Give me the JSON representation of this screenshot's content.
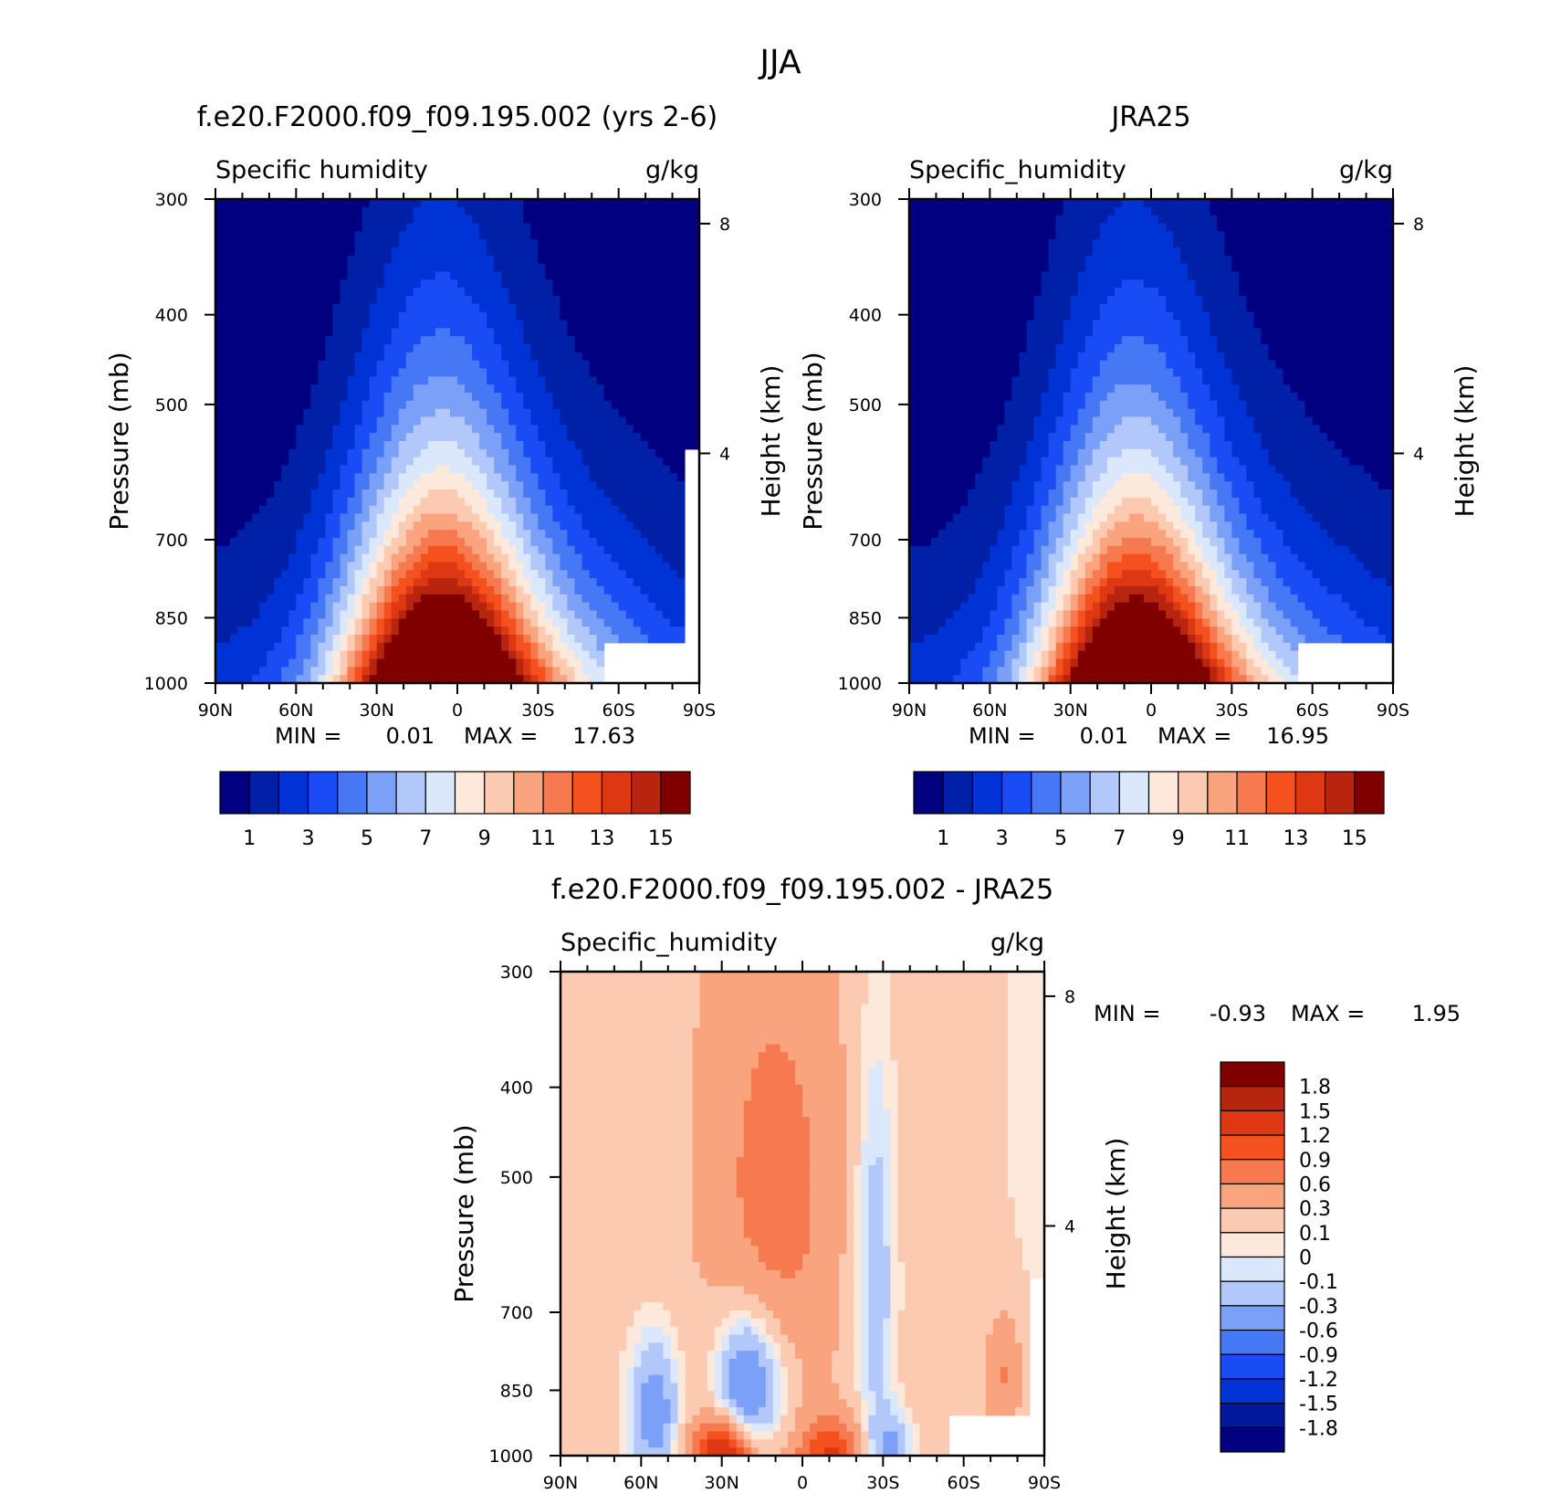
{
  "title": "JJA",
  "colors": {
    "abs_levels": [
      "#000080",
      "#0020a8",
      "#0033d6",
      "#1a4cf5",
      "#4677f5",
      "#7ba0f7",
      "#b3c8fa",
      "#dbe8fb",
      "#fde9dc",
      "#fbcab0",
      "#f9a47f",
      "#f7794f",
      "#f4511e",
      "#dd3814",
      "#b8250e",
      "#800000"
    ],
    "diff_levels": [
      "#000080",
      "#00199e",
      "#0033d6",
      "#1a4cf5",
      "#4677f5",
      "#7ba0f7",
      "#b3c8fa",
      "#dbe8fb",
      "#fde9dc",
      "#fbcab0",
      "#f9a47f",
      "#f7794f",
      "#f4511e",
      "#dd3814",
      "#b8250e",
      "#800000"
    ]
  },
  "chart_data": [
    {
      "type": "heatmap",
      "title": "f.e20.F2000.f09_f09.195.002 (yrs 2-6)",
      "left_label": "Specific humidity",
      "units": "g/kg",
      "xlabel": "",
      "ylabel": "Pressure (mb)",
      "y2label": "Height (km)",
      "xticks": [
        "90N",
        "60N",
        "30N",
        "0",
        "30S",
        "60S",
        "90S"
      ],
      "yticks": [
        300,
        400,
        500,
        700,
        850,
        1000
      ],
      "y2ticks": [
        8,
        4
      ],
      "xlim": [
        90,
        -90
      ],
      "ylim": [
        1000,
        300
      ],
      "min_label": "MIN =",
      "min": "0.01",
      "max_label": "MAX =",
      "max": "17.63",
      "colorbar_labels": [
        "1",
        "3",
        "5",
        "7",
        "9",
        "11",
        "13",
        "15"
      ],
      "field": "model"
    },
    {
      "type": "heatmap",
      "title": "JRA25",
      "left_label": "Specific_humidity",
      "units": "g/kg",
      "xlabel": "",
      "ylabel": "Pressure (mb)",
      "y2label": "Height (km)",
      "xticks": [
        "90N",
        "60N",
        "30N",
        "0",
        "30S",
        "60S",
        "90S"
      ],
      "yticks": [
        300,
        400,
        500,
        700,
        850,
        1000
      ],
      "y2ticks": [
        8,
        4
      ],
      "xlim": [
        90,
        -90
      ],
      "ylim": [
        1000,
        300
      ],
      "min_label": "MIN =",
      "min": "0.01",
      "max_label": "MAX =",
      "max": "16.95",
      "colorbar_labels": [
        "1",
        "3",
        "5",
        "7",
        "9",
        "11",
        "13",
        "15"
      ],
      "field": "obs"
    },
    {
      "type": "heatmap",
      "title": "f.e20.F2000.f09_f09.195.002 - JRA25",
      "left_label": "Specific_humidity",
      "units": "g/kg",
      "xlabel": "",
      "ylabel": "Pressure (mb)",
      "y2label": "Height (km)",
      "xticks": [
        "90N",
        "60N",
        "30N",
        "0",
        "30S",
        "60S",
        "90S"
      ],
      "yticks": [
        300,
        400,
        500,
        700,
        850,
        1000
      ],
      "y2ticks": [
        8,
        4
      ],
      "xlim": [
        90,
        -90
      ],
      "ylim": [
        1000,
        300
      ],
      "min_label": "MIN =",
      "min": "-0.93",
      "max_label": "MAX =",
      "max": "1.95",
      "colorbar_labels": [
        "1.8",
        "1.5",
        "1.2",
        "0.9",
        "0.6",
        "0.3",
        "0.1",
        "0",
        "-0.1",
        "-0.3",
        "-0.6",
        "-0.9",
        "-1.2",
        "-1.5",
        "-1.8"
      ],
      "field": "diff"
    }
  ]
}
